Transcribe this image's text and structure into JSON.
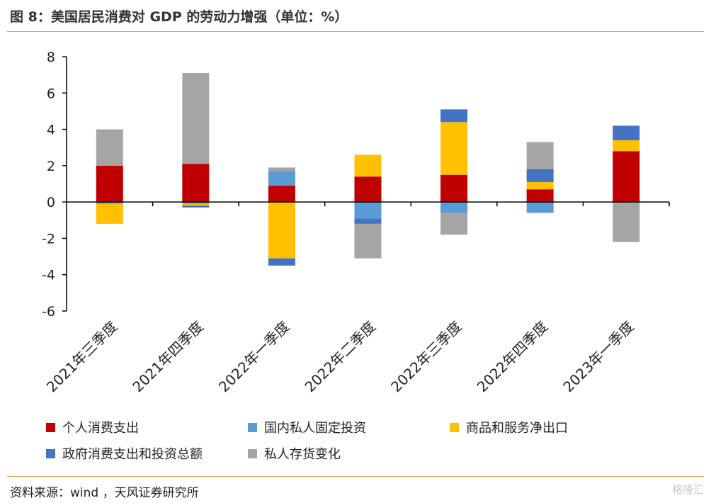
{
  "title": "图 8：美国居民消费对 GDP 的劳动力增强（单位：%）",
  "source": "资料来源：wind ，天风证券研究所",
  "watermark": "格隆汇",
  "chart_data": {
    "type": "bar",
    "stacked": true,
    "categories": [
      "2021年三季度",
      "2021年四季度",
      "2022年一季度",
      "2022年二季度",
      "2022年三季度",
      "2022年四季度",
      "2023年一季度"
    ],
    "ylim": [
      -6,
      8
    ],
    "yticks": [
      8,
      6,
      4,
      2,
      0,
      -2,
      -4,
      -6
    ],
    "series": [
      {
        "name": "个人消费支出",
        "color": "#c00000",
        "values": [
          2.0,
          2.1,
          0.9,
          1.4,
          1.5,
          0.7,
          2.8
        ]
      },
      {
        "name": "国内私人固定投资",
        "color": "#5b9bd5",
        "values": [
          -0.1,
          -0.1,
          0.8,
          -0.9,
          -0.6,
          -0.6,
          0.0
        ]
      },
      {
        "name": "商品和服务净出口",
        "color": "#ffc000",
        "values": [
          -1.1,
          -0.1,
          -3.1,
          1.2,
          2.9,
          0.4,
          0.6
        ]
      },
      {
        "name": "政府消费支出和投资总额",
        "color": "#4472c4",
        "values": [
          0.0,
          -0.1,
          -0.4,
          -0.3,
          0.7,
          0.7,
          0.8
        ]
      },
      {
        "name": "私人存货变化",
        "color": "#a5a5a5",
        "values": [
          2.0,
          5.0,
          0.2,
          -1.9,
          -1.2,
          1.5,
          -2.2
        ]
      }
    ]
  }
}
